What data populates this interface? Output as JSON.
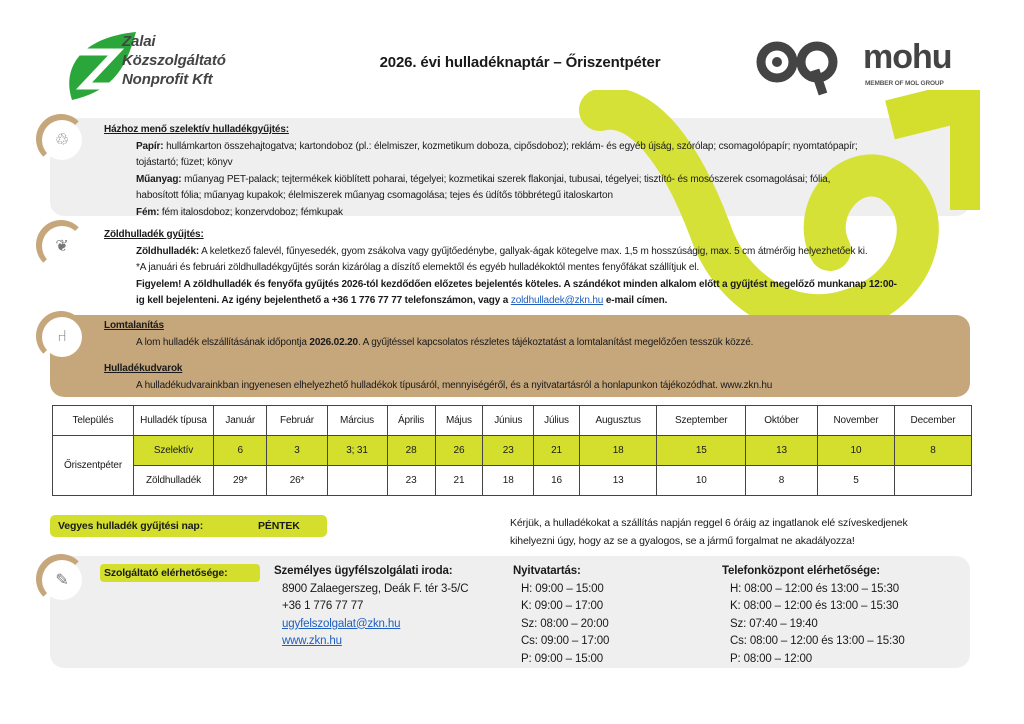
{
  "header": {
    "left_logo_text": [
      "Zalai",
      "Közszolgáltató",
      "Nonprofit Kft"
    ],
    "title": "2026. évi hulladéknaptár – Őriszentpéter",
    "right_logo_text": "mohu",
    "right_logo_sub": "MEMBER OF MOL GROUP"
  },
  "colors": {
    "accent_green": "#d3df2c",
    "tan": "#c6a77c",
    "panel_gray": "#efefef",
    "logo_green": "#2aa63a"
  },
  "selective": {
    "icon": "recycle-icon",
    "heading": "Házhoz menő szelektív hulladékgyűjtés:",
    "paper_label": "Papír:",
    "paper_text_1": " hullámkarton összehajtogatva; kartondoboz (pl.: élelmiszer, kozmetikum doboza, cipősdoboz); reklám- és egyéb újság, szórólap; csomagolópapír; nyomtatópapír;",
    "paper_text_2": "tojástartó; füzet; könyv",
    "plastic_label": "Műanyag:",
    "plastic_text_1": " műanyag PET-palack; tejtermékek kiöblített poharai, tégelyei; kozmetikai szerek flakonjai, tubusai, tégelyei; tisztító- és mosószerek csomagolásai; fólia,",
    "plastic_text_2": "habosított fólia; műanyag kupakok; élelmiszerek műanyag csomagolása; tejes és üdítős többrétegű italoskarton",
    "metal_label": "Fém:",
    "metal_text": " fém italosdoboz; konzervdoboz; fémkupak"
  },
  "green": {
    "icon": "leaf-icon",
    "heading": "Zöldhulladék gyűjtés:",
    "label": "Zöldhulladék:",
    "text": " A keletkező falevél, fűnyesedék, gyom zsákolva vagy gyűjtőedénybe, gallyak-ágak kötegelve max. 1,5 m hosszúságig, max. 5 cm átmérőig helyezhetőek ki.",
    "note": "*A januári és februári zöldhulladékgyűjtés során kizárólag a díszítő elemektől és egyéb hulladékoktól mentes fenyőfákat szállítjuk el.",
    "warning_1": "Figyelem! A zöldhulladék és fenyőfa gyűjtés 2026-tól kezdődően előzetes bejelentés köteles. A szándékot minden alkalom előtt a gyűjtést megelőző munkanap 12:00-",
    "warning_2a": "ig kell bejelenteni. Az igény bejelenthető a +36 1 776 77 77 telefonszámon, vagy a ",
    "email": "zoldhulladek@zkn.hu",
    "warning_2b": " e-mail címen."
  },
  "bulky": {
    "icon": "chair-icon",
    "heading": "Lomtalanítás",
    "text_a": "A lom hulladék elszállításának időpontja ",
    "date": "2026.02.20",
    "text_b": ". A gyűjtéssel kapcsolatos részletes tájékoztatást a lomtalanítást megelőzően tesszük közzé.",
    "yards_heading": "Hulladékudvarok",
    "yards_text": "A hulladékudvarainkban ingyenesen elhelyezhető hulladékok típusáról, mennyiségéről, és a nyitvatartásról a honlapunkon tájékozódhat. www.zkn.hu"
  },
  "table": {
    "headers": [
      "Település",
      "Hulladék típusa",
      "Január",
      "Február",
      "Március",
      "Április",
      "Május",
      "Június",
      "Július",
      "Augusztus",
      "Szeptember",
      "Október",
      "November",
      "December"
    ],
    "settlement": "Őriszentpéter",
    "rows": [
      {
        "type": "Szelektív",
        "values": [
          "6",
          "3",
          "3; 31",
          "28",
          "26",
          "23",
          "21",
          "18",
          "15",
          "13",
          "10",
          "8"
        ]
      },
      {
        "type": "Zöldhulladék",
        "values": [
          "29*",
          "26*",
          "",
          "23",
          "21",
          "18",
          "16",
          "13",
          "10",
          "8",
          "5",
          ""
        ]
      }
    ]
  },
  "mixed": {
    "label": "Vegyes hulladék gyűjtési nap:",
    "day": "PÉNTEK"
  },
  "notice": [
    "Kérjük, a hulladékokat a szállítás napján reggel 6 óráig az ingatlanok elé szíveskedjenek",
    "kihelyezni úgy, hogy az se a gyalogos, se a jármű forgalmat ne akadályozza!"
  ],
  "contact": {
    "icon": "document-edit-icon",
    "label": "Szolgáltató elérhetősége:",
    "office_title": "Személyes ügyfélszolgálati iroda:",
    "address": "8900 Zalaegerszeg, Deák F. tér 3-5/C",
    "phone": "+36 1 776 77 77",
    "email": "ugyfelszolgalat@zkn.hu",
    "web": "www.zkn.hu",
    "hours_title": "Nyitvatartás:",
    "hours": [
      "H: 09:00 – 15:00",
      "K: 09:00 – 17:00",
      "Sz: 08:00 – 20:00",
      "Cs: 09:00 – 17:00",
      "P: 09:00 – 15:00"
    ],
    "phone_title": "Telefonközpont elérhetősége:",
    "phone_hours": [
      "H: 08:00 – 12:00 és 13:00 – 15:30",
      "K: 08:00 – 12:00 és 13:00 – 15:30",
      "Sz: 07:40 – 19:40",
      "Cs: 08:00 – 12:00 és 13:00 – 15:30",
      "P: 08:00 – 12:00"
    ]
  }
}
